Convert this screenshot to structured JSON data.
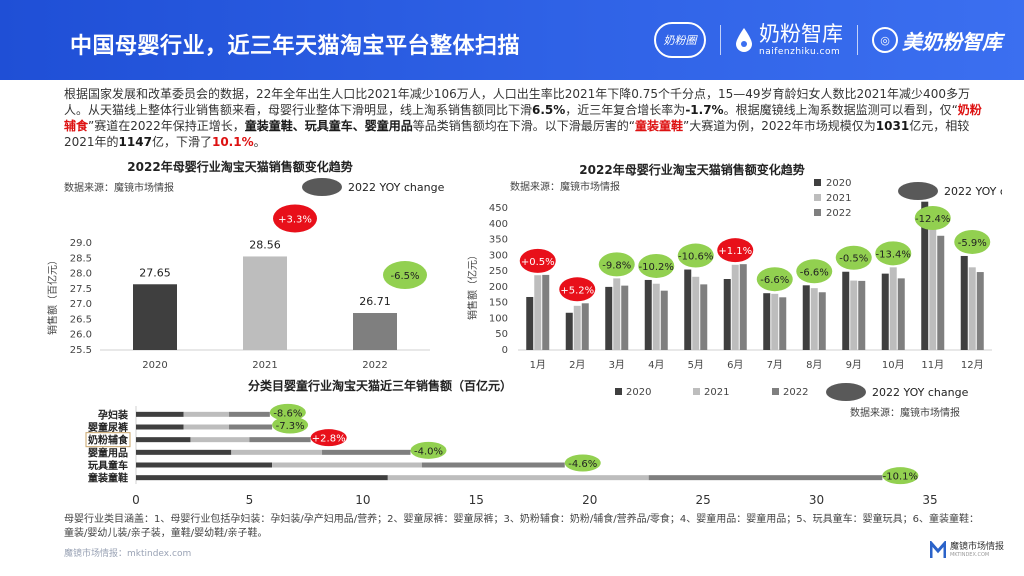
{
  "header": {
    "title": "中国母婴行业，近三年天猫淘宝平台整体扫描",
    "logos": [
      "奶粉圈",
      "奶粉智库",
      "naifenzhiku.com",
      "美奶粉智库"
    ]
  },
  "intro": {
    "p1": "根据国家发展和改革委员会的数据，22年全年出生人口比2021年减少106万人，人口出生率比2021年下降0.75个千分点，15—49岁育龄妇女人数比2021年减少400多万人。从天猫线上整体行业销售额来看，母婴行业整体下滑明显，线上淘系销售额同比下滑",
    "b1": "6.5%",
    "p2": "，近三年复合增长率为",
    "b2": "-1.7%",
    "p3": "。根据魔镜线上淘系数据监测可以看到，仅“",
    "r1": "奶粉辅食",
    "p4": "”赛道在2022年保持正增长，",
    "b3": "童装童鞋、玩具童车、婴童用品",
    "p5": "等品类销售额均在下滑。以下滑最厉害的“",
    "r2": "童装童鞋",
    "p6": "”大赛道为例，2022年市场规模仅为",
    "b4": "1031",
    "p7": "亿元，相较2021年的",
    "b5": "1147",
    "p8": "亿，下滑了",
    "r3": "10.1%",
    "p9": "。"
  },
  "colors": {
    "c2020": "#3f3f3f",
    "c2021": "#bdbdbd",
    "c2022": "#7f7f7f",
    "yoy_neg": "#92d050",
    "yoy_pos": "#e8101a",
    "yoy_legend": "#595959",
    "highlight_box": "#c9a46a"
  },
  "chart_data": [
    {
      "id": "annual",
      "type": "bar",
      "title": "2022年母婴行业淘宝天猫销售额变化趋势",
      "source": "数据来源：魔镜市场情报",
      "legend_label": "2022 YOY change",
      "ylabel": "销售额（百亿元）",
      "categories": [
        "2020",
        "2021",
        "2022"
      ],
      "values": [
        27.65,
        28.56,
        26.71
      ],
      "ylim": [
        25.5,
        29.0
      ],
      "yticks": [
        25.5,
        26.0,
        26.5,
        27.0,
        27.5,
        28.0,
        28.5,
        29.0
      ],
      "yoy": [
        {
          "index": 1,
          "label": "+3.3%",
          "sign": "pos"
        },
        {
          "index": 2,
          "label": "-6.5%",
          "sign": "neg"
        }
      ]
    },
    {
      "id": "monthly",
      "type": "bar",
      "title": "2022年母婴行业淘宝天猫销售额变化趋势",
      "source": "数据来源：魔镜市场情报",
      "legend_label": "2022 YOY change",
      "ylabel": "销售额（亿元）",
      "categories": [
        "1月",
        "2月",
        "3月",
        "4月",
        "5月",
        "6月",
        "7月",
        "8月",
        "9月",
        "10月",
        "11月",
        "12月"
      ],
      "series": [
        {
          "name": "2020",
          "values": [
            168,
            118,
            200,
            222,
            255,
            225,
            180,
            205,
            248,
            242,
            470,
            298
          ]
        },
        {
          "name": "2021",
          "values": [
            237,
            140,
            227,
            210,
            232,
            270,
            178,
            196,
            220,
            262,
            415,
            262
          ]
        },
        {
          "name": "2022",
          "values": [
            238,
            148,
            204,
            188,
            208,
            272,
            167,
            183,
            219,
            227,
            362,
            247
          ]
        }
      ],
      "ylim": [
        0,
        450
      ],
      "yticks": [
        0,
        50,
        100,
        150,
        200,
        250,
        300,
        350,
        400,
        450
      ],
      "yoy": [
        "+0.5%",
        "+5.2%",
        "-9.8%",
        "-10.2%",
        "-10.6%",
        "+1.1%",
        "-6.6%",
        "-6.6%",
        "-0.5%",
        "-13.4%",
        "-12.4%",
        "-5.9%"
      ]
    },
    {
      "id": "category",
      "type": "bar",
      "orientation": "horizontal-stacked",
      "title": "分类目婴童行业淘宝天猫近三年销售额（百亿元）",
      "source": "数据来源：魔镜市场情报",
      "legend": [
        "2020",
        "2021",
        "2022",
        "2022 YOY change"
      ],
      "categories": [
        "孕妇装",
        "婴童尿裤",
        "奶粉辅食",
        "婴童用品",
        "玩具童车",
        "童装童鞋"
      ],
      "highlight": "奶粉辅食",
      "series": [
        {
          "name": "2020",
          "values": [
            2.1,
            2.1,
            2.4,
            4.2,
            6.0,
            11.1
          ]
        },
        {
          "name": "2021",
          "values": [
            2.0,
            2.0,
            2.6,
            4.0,
            6.6,
            11.5
          ]
        },
        {
          "name": "2022",
          "values": [
            1.8,
            1.9,
            2.7,
            3.9,
            6.3,
            10.3
          ]
        }
      ],
      "xlim": [
        0,
        35
      ],
      "xticks": [
        0,
        5,
        10,
        15,
        20,
        25,
        30,
        35
      ],
      "yoy": [
        {
          "label": "-8.6%",
          "sign": "neg"
        },
        {
          "label": "-7.3%",
          "sign": "neg"
        },
        {
          "label": "+2.8%",
          "sign": "pos"
        },
        {
          "label": "-4.0%",
          "sign": "neg"
        },
        {
          "label": "-4.6%",
          "sign": "neg"
        },
        {
          "label": "-10.1%",
          "sign": "neg"
        }
      ]
    }
  ],
  "footnote": "母婴行业类目涵盖：1、母婴行业包括孕妇装：孕妇装/孕产妇用品/营养；2、婴童尿裤：婴童尿裤；3、奶粉辅食：奶粉/辅食/营养品/零食；4、婴童用品：婴童用品；5、玩具童车：婴童玩具；6、童装童鞋：童装/婴幼儿装/亲子装，童鞋/婴幼鞋/亲子鞋。",
  "footer": {
    "left": "魔镜市场情报：mktindex.com",
    "right_main": "魔镜市场情报",
    "right_sub": "MKTINDEX.COM"
  }
}
